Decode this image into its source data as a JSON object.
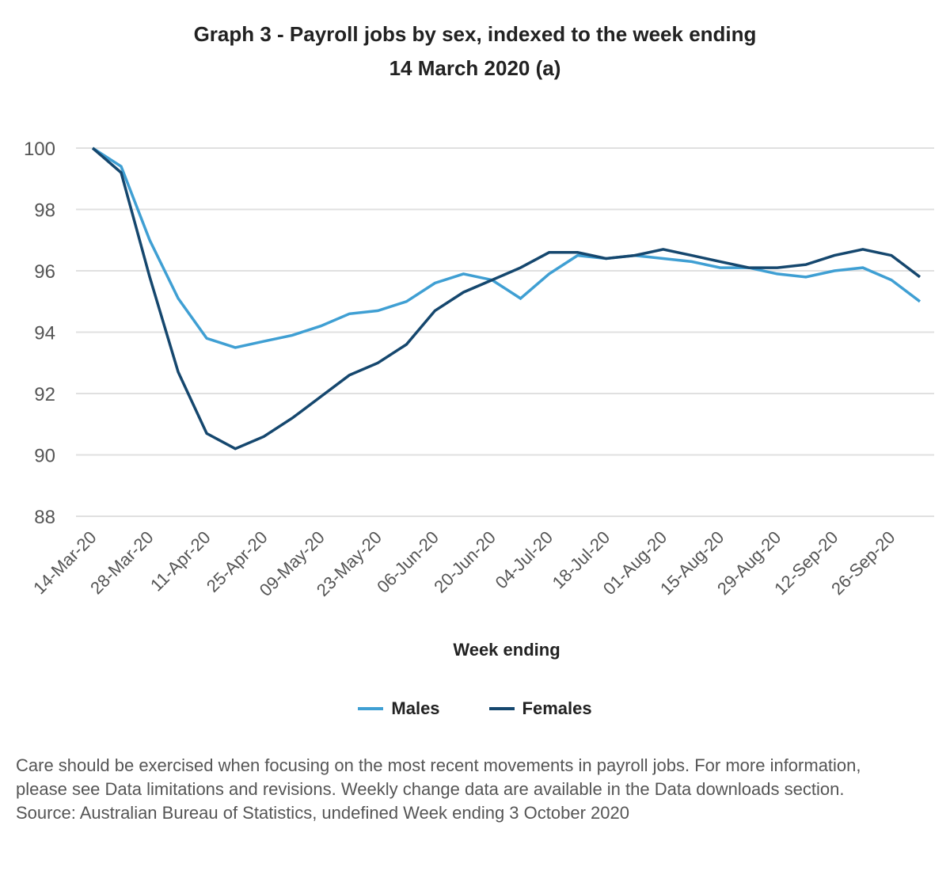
{
  "chart_data": {
    "type": "line",
    "title_line1": "Graph 3 - Payroll jobs by sex, indexed to the week ending",
    "title_line2": "14 March 2020 (a)",
    "xlabel": "Week ending",
    "ylabel": "",
    "ylim": [
      88,
      100
    ],
    "yticks": [
      88,
      90,
      92,
      94,
      96,
      98,
      100
    ],
    "xtick_labels": [
      "14-Mar-20",
      "28-Mar-20",
      "11-Apr-20",
      "25-Apr-20",
      "09-May-20",
      "23-May-20",
      "06-Jun-20",
      "20-Jun-20",
      "04-Jul-20",
      "18-Jul-20",
      "01-Aug-20",
      "15-Aug-20",
      "29-Aug-20",
      "12-Sep-20",
      "26-Sep-20"
    ],
    "n_weeks": 30,
    "grid": true,
    "legend_position": "bottom",
    "series": [
      {
        "name": "Males",
        "color": "#3f9fd3",
        "values": [
          100,
          99.4,
          97.0,
          95.1,
          93.8,
          93.5,
          93.7,
          93.9,
          94.2,
          94.6,
          94.7,
          95.0,
          95.6,
          95.9,
          95.7,
          95.1,
          95.9,
          96.5,
          96.4,
          96.5,
          96.4,
          96.3,
          96.1,
          96.1,
          95.9,
          95.8,
          96.0,
          96.1,
          95.7,
          95.0
        ]
      },
      {
        "name": "Females",
        "color": "#15476e",
        "values": [
          100,
          99.2,
          95.8,
          92.7,
          90.7,
          90.2,
          90.6,
          91.2,
          91.9,
          92.6,
          93.0,
          93.6,
          94.7,
          95.3,
          95.7,
          96.1,
          96.6,
          96.6,
          96.4,
          96.5,
          96.7,
          96.5,
          96.3,
          96.1,
          96.1,
          96.2,
          96.5,
          96.7,
          96.5,
          95.8
        ]
      }
    ]
  },
  "notes": {
    "caveat": "Care should be exercised when focusing on the most recent movements in payroll jobs. For more information, please see Data limitations and revisions. Weekly change data are available in the Data downloads section.",
    "source": "Source: Australian Bureau of Statistics, undefined Week ending 3 October 2020"
  }
}
